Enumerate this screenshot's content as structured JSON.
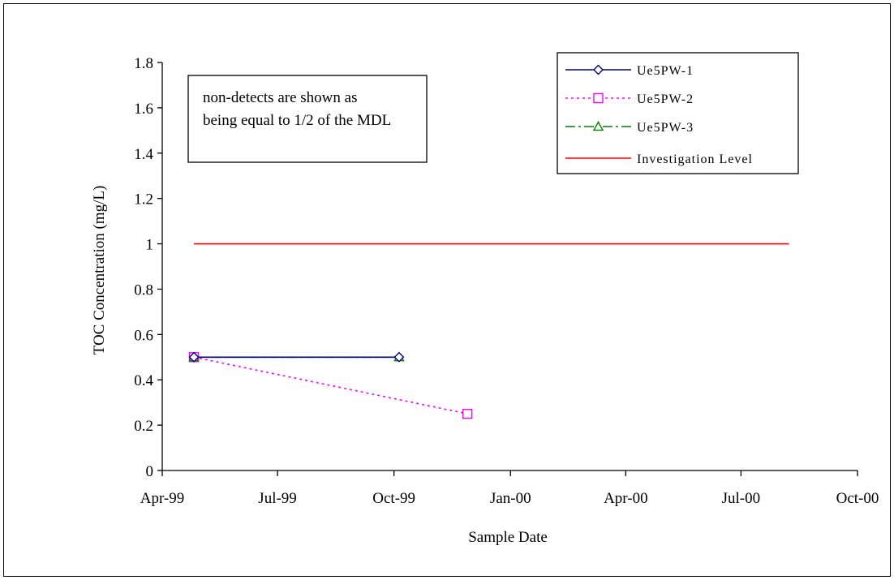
{
  "chart_data": {
    "type": "line",
    "xlabel": "Sample Date",
    "ylabel": "TOC  Concentration (mg/L)",
    "x_ticks": [
      "Apr-99",
      "Jul-99",
      "Oct-99",
      "Jan-00",
      "Apr-00",
      "Jul-00",
      "Oct-00"
    ],
    "x_tick_dates": [
      "1999-04-01",
      "1999-07-01",
      "1999-10-01",
      "2000-01-01",
      "2000-04-01",
      "2000-07-01",
      "2000-10-01"
    ],
    "y_ticks": [
      "0",
      "0.2",
      "0.4",
      "0.6",
      "0.8",
      "1",
      "1.2",
      "1.4",
      "1.6",
      "1.8"
    ],
    "xlim": [
      "1999-04-01",
      "2000-10-01"
    ],
    "ylim": [
      0,
      1.8
    ],
    "annotation_lines": [
      "non-detects are shown as",
      "being  equal to 1/2 of the MDL"
    ],
    "legend_position": "top-right",
    "series": [
      {
        "name": "Ue5PW-1",
        "color": "#000080",
        "marker": "diamond",
        "dash": "solid",
        "points": [
          {
            "x": "1999-04-26",
            "y": 0.5
          },
          {
            "x": "1999-10-05",
            "y": 0.5
          }
        ]
      },
      {
        "name": "Ue5PW-2",
        "color": "#ff00ff",
        "marker": "square",
        "dash": "dotted",
        "points": [
          {
            "x": "1999-04-26",
            "y": 0.5
          },
          {
            "x": "1999-11-28",
            "y": 0.25
          }
        ]
      },
      {
        "name": "Ue5PW-3",
        "color": "#008000",
        "marker": "triangle",
        "dash": "dashdot",
        "points": [
          {
            "x": "1999-04-26",
            "y": 0.5
          },
          {
            "x": "1999-10-05",
            "y": 0.5
          }
        ]
      },
      {
        "name": "Investigation Level",
        "color": "#ff0000",
        "marker": "none",
        "dash": "solid",
        "points": [
          {
            "x": "1999-04-26",
            "y": 1
          },
          {
            "x": "2000-08-08",
            "y": 1
          }
        ]
      }
    ]
  }
}
